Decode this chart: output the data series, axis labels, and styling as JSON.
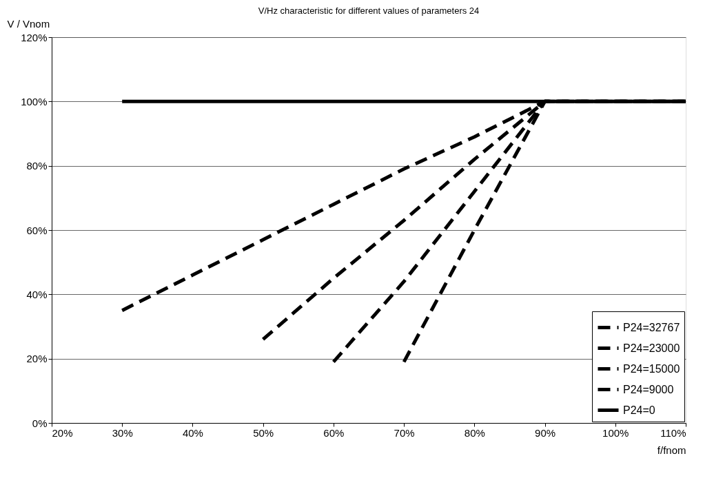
{
  "chart_data": {
    "type": "line",
    "title": "V/Hz characteristic for different values of parameters 24",
    "xlabel": "f/fnom",
    "ylabel": "V / Vnom",
    "xlim": [
      20,
      110
    ],
    "ylim": [
      0,
      120
    ],
    "xticks": [
      {
        "value": 20,
        "label": "20%"
      },
      {
        "value": 30,
        "label": "30%"
      },
      {
        "value": 40,
        "label": "40%"
      },
      {
        "value": 50,
        "label": "50%"
      },
      {
        "value": 60,
        "label": "60%"
      },
      {
        "value": 70,
        "label": "70%"
      },
      {
        "value": 80,
        "label": "80%"
      },
      {
        "value": 90,
        "label": "90%"
      },
      {
        "value": 100,
        "label": "100%"
      },
      {
        "value": 110,
        "label": "110%"
      }
    ],
    "yticks": [
      {
        "value": 0,
        "label": "0%"
      },
      {
        "value": 20,
        "label": "20%"
      },
      {
        "value": 40,
        "label": "40%"
      },
      {
        "value": 60,
        "label": "60%"
      },
      {
        "value": 80,
        "label": "80%"
      },
      {
        "value": 100,
        "label": "100%"
      },
      {
        "value": 120,
        "label": "120%"
      }
    ],
    "grid": "y",
    "legend": "bottom right",
    "series": [
      {
        "name": "P24=32767",
        "color": "#000000",
        "line_style": "dashed",
        "x": [
          70,
          80,
          90,
          100,
          110
        ],
        "values": [
          19,
          60,
          100,
          100,
          100
        ]
      },
      {
        "name": "P24=23000",
        "color": "#000000",
        "line_style": "dashed",
        "x": [
          60,
          70,
          80,
          90,
          100,
          110
        ],
        "values": [
          19,
          44,
          72,
          100,
          100,
          100
        ]
      },
      {
        "name": "P24=15000",
        "color": "#000000",
        "line_style": "dashed",
        "x": [
          50,
          60,
          70,
          80,
          90,
          100,
          110
        ],
        "values": [
          26,
          45,
          63,
          82,
          100,
          100,
          100
        ]
      },
      {
        "name": "P24=9000",
        "color": "#000000",
        "line_style": "dashed",
        "x": [
          30,
          40,
          50,
          60,
          70,
          80,
          90,
          100,
          110
        ],
        "values": [
          35,
          46,
          57,
          68,
          79,
          89,
          100,
          100,
          100
        ]
      },
      {
        "name": "P24=0",
        "color": "#000000",
        "line_style": "solid",
        "x": [
          30,
          40,
          50,
          60,
          70,
          80,
          90,
          100,
          110
        ],
        "values": [
          100,
          100,
          100,
          100,
          100,
          100,
          100,
          100,
          100
        ]
      }
    ]
  }
}
